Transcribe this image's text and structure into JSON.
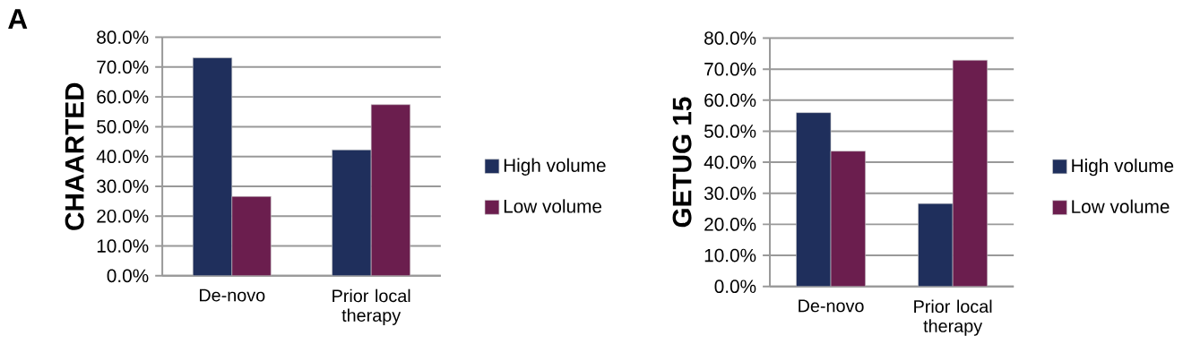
{
  "chart_data": [
    {
      "type": "bar",
      "annotations": [
        "A"
      ],
      "ylabel": "CHAARTED",
      "categories": [
        "De-novo",
        "Prior local therapy"
      ],
      "series": [
        {
          "name": "High volume",
          "color": "#1f2f5c",
          "values": [
            73.1,
            42.2
          ]
        },
        {
          "name": "Low volume",
          "color": "#6b1e4e",
          "values": [
            26.6,
            57.4
          ]
        }
      ],
      "ylim": [
        0,
        80
      ],
      "yticks": [
        {
          "value": 0,
          "label": "0.0%"
        },
        {
          "value": 10,
          "label": "10.0%"
        },
        {
          "value": 20,
          "label": "20.0%"
        },
        {
          "value": 30,
          "label": "30.0%"
        },
        {
          "value": 40,
          "label": "40.0%"
        },
        {
          "value": 50,
          "label": "50.0%"
        },
        {
          "value": 60,
          "label": "60.0%"
        },
        {
          "value": 70,
          "label": "70.0%"
        },
        {
          "value": 80,
          "label": "80.0%"
        }
      ],
      "grid": "y",
      "legend": "right"
    },
    {
      "type": "bar",
      "ylabel": "GETUG 15",
      "categories": [
        "De-novo",
        "Prior local therapy"
      ],
      "series": [
        {
          "name": "High volume",
          "color": "#1f2f5c",
          "values": [
            56.0,
            26.7
          ]
        },
        {
          "name": "Low volume",
          "color": "#6b1e4e",
          "values": [
            43.6,
            72.9
          ]
        }
      ],
      "ylim": [
        0,
        80
      ],
      "yticks": [
        {
          "value": 0,
          "label": "0.0%"
        },
        {
          "value": 10,
          "label": "10.0%"
        },
        {
          "value": 20,
          "label": "20.0%"
        },
        {
          "value": 30,
          "label": "30.0%"
        },
        {
          "value": 40,
          "label": "40.0%"
        },
        {
          "value": 50,
          "label": "50.0%"
        },
        {
          "value": 60,
          "label": "60.0%"
        },
        {
          "value": 70,
          "label": "70.0%"
        },
        {
          "value": 80,
          "label": "80.0%"
        }
      ],
      "grid": "y",
      "legend": "right"
    }
  ]
}
